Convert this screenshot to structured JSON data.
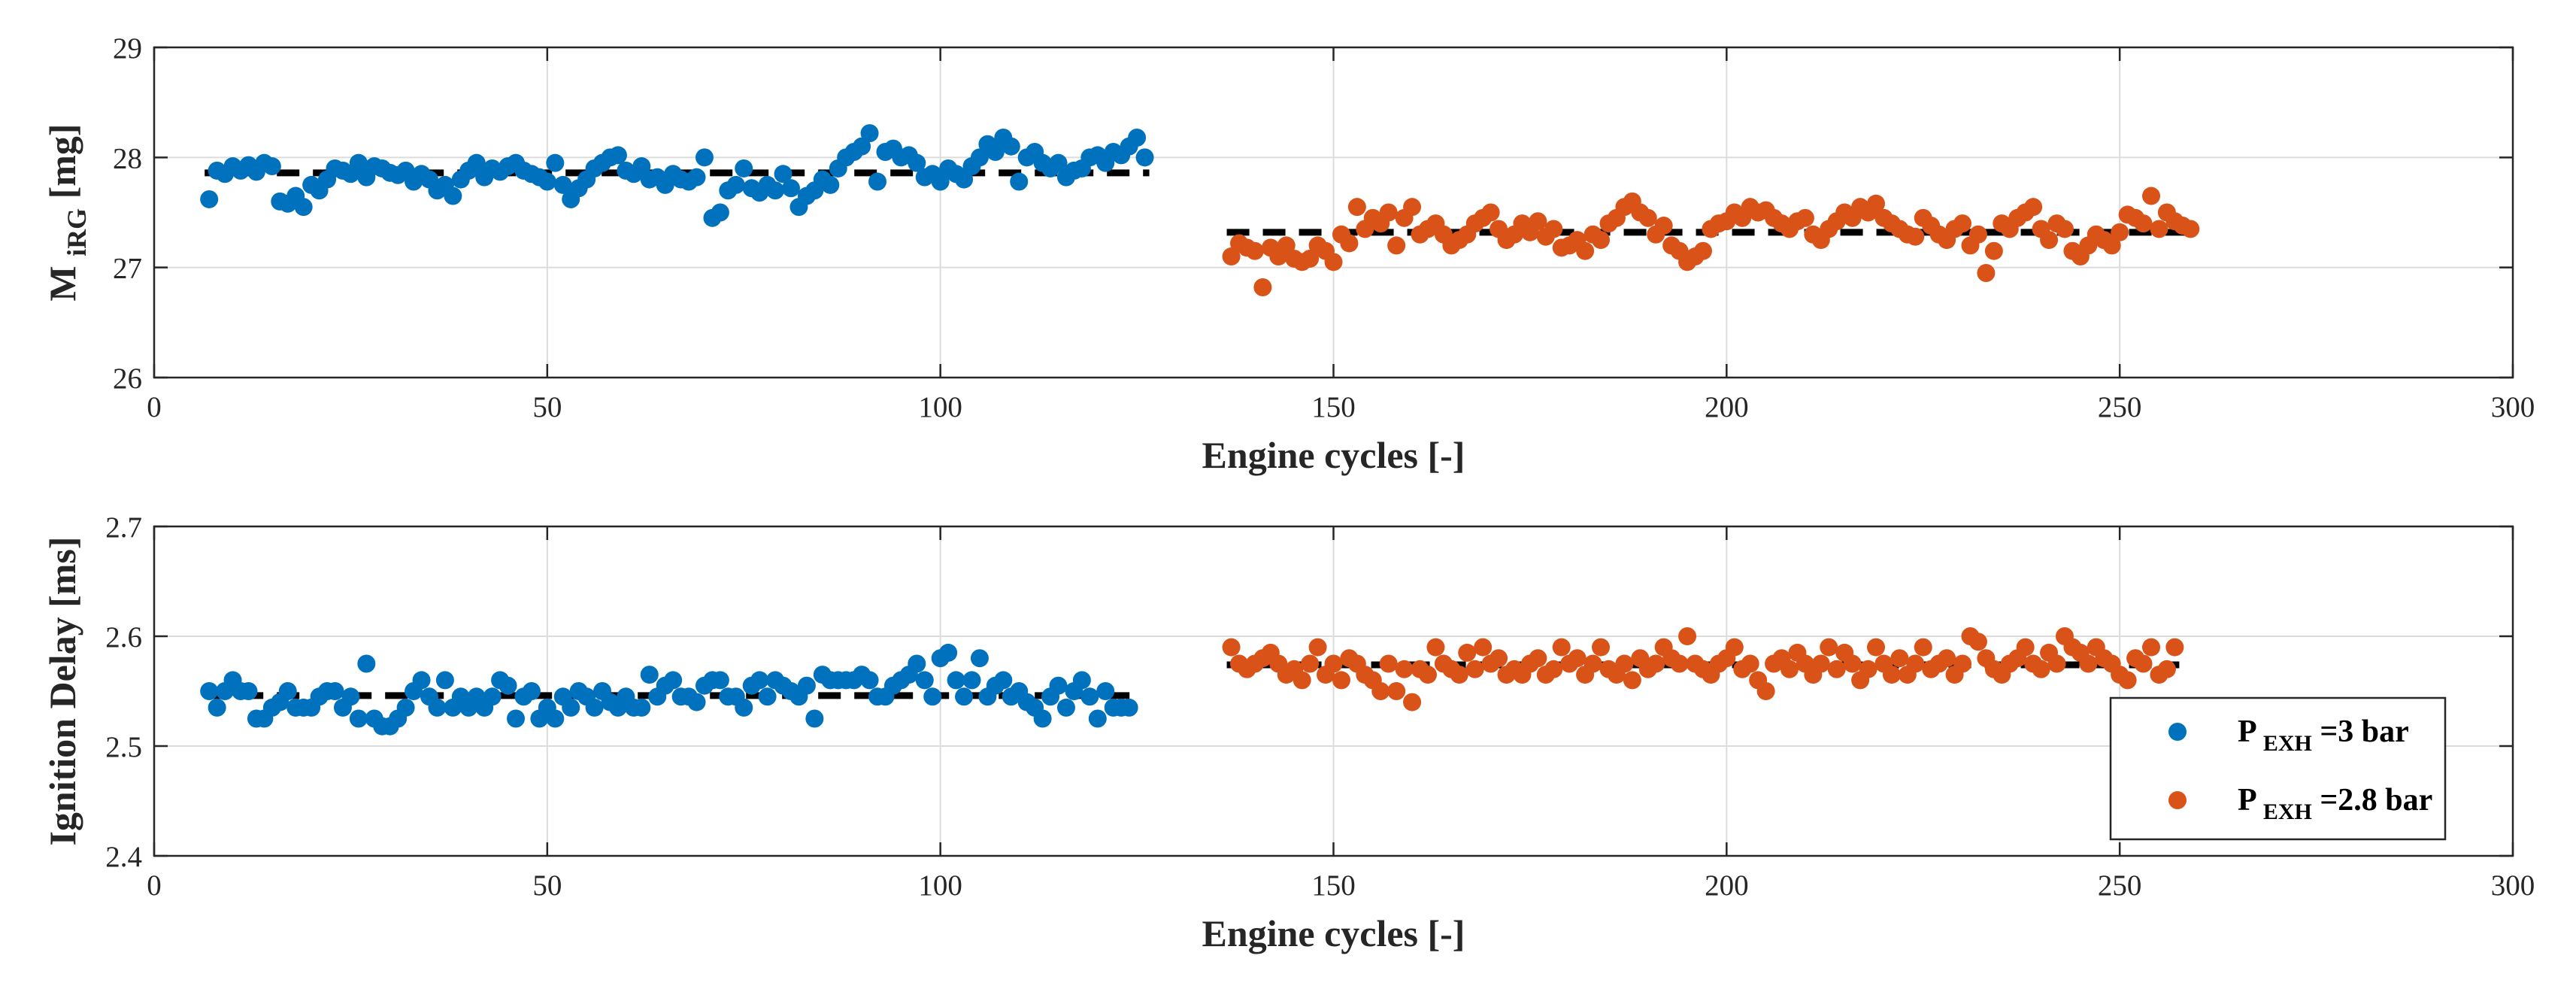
{
  "chart_data": [
    {
      "type": "scatter",
      "xlabel": "Engine cycles [-]",
      "ylabel": {
        "main": "M",
        "sub": "iRG",
        "rest": " [mg]"
      },
      "xlim": [
        0,
        300
      ],
      "ylim": [
        26,
        29
      ],
      "xticks": [
        0,
        50,
        100,
        150,
        200,
        250,
        300
      ],
      "yticks": [
        26,
        27,
        28,
        29
      ],
      "grid": true,
      "series": [
        {
          "name": "P_EXH=3 bar",
          "color": "#0072BD",
          "x_start": 7,
          "values": [
            27.62,
            27.88,
            27.85,
            27.92,
            27.88,
            27.93,
            27.87,
            27.95,
            27.92,
            27.6,
            27.58,
            27.65,
            27.55,
            27.75,
            27.7,
            27.8,
            27.9,
            27.88,
            27.85,
            27.95,
            27.82,
            27.92,
            27.9,
            27.86,
            27.84,
            27.88,
            27.78,
            27.85,
            27.8,
            27.7,
            27.75,
            27.65,
            27.8,
            27.88,
            27.95,
            27.82,
            27.9,
            27.87,
            27.92,
            27.95,
            27.88,
            27.85,
            27.82,
            27.78,
            27.95,
            27.75,
            27.62,
            27.72,
            27.8,
            27.9,
            27.95,
            28.0,
            28.02,
            27.88,
            27.85,
            27.92,
            27.8,
            27.82,
            27.75,
            27.85,
            27.8,
            27.78,
            27.82,
            28.0,
            27.45,
            27.5,
            27.7,
            27.75,
            27.9,
            27.72,
            27.68,
            27.75,
            27.7,
            27.85,
            27.72,
            27.55,
            27.65,
            27.7,
            27.8,
            27.75,
            27.9,
            28.0,
            28.05,
            28.1,
            28.22,
            27.78,
            28.05,
            28.08,
            28.0,
            28.02,
            27.95,
            27.82,
            27.85,
            27.78,
            27.9,
            27.85,
            27.8,
            27.92,
            28.0,
            28.12,
            28.05,
            28.18,
            28.1,
            27.78,
            28.0,
            28.05,
            27.95,
            27.9,
            27.95,
            27.82,
            27.88,
            27.9,
            28.0,
            28.02,
            27.95,
            28.05,
            28.02,
            28.1,
            28.18,
            28.0
          ],
          "mean": 27.86
        },
        {
          "name": "P_EXH=2.8 bar",
          "color": "#D95319",
          "x_start": 137,
          "values": [
            27.1,
            27.22,
            27.18,
            27.15,
            26.82,
            27.18,
            27.1,
            27.2,
            27.08,
            27.05,
            27.08,
            27.2,
            27.15,
            27.05,
            27.3,
            27.22,
            27.55,
            27.35,
            27.45,
            27.4,
            27.5,
            27.2,
            27.45,
            27.55,
            27.3,
            27.35,
            27.4,
            27.3,
            27.2,
            27.25,
            27.3,
            27.4,
            27.45,
            27.5,
            27.35,
            27.25,
            27.3,
            27.4,
            27.32,
            27.42,
            27.28,
            27.35,
            27.18,
            27.2,
            27.25,
            27.15,
            27.3,
            27.25,
            27.4,
            27.45,
            27.55,
            27.6,
            27.5,
            27.45,
            27.3,
            27.38,
            27.2,
            27.15,
            27.05,
            27.1,
            27.15,
            27.35,
            27.4,
            27.42,
            27.5,
            27.45,
            27.55,
            27.5,
            27.52,
            27.45,
            27.4,
            27.35,
            27.42,
            27.45,
            27.3,
            27.25,
            27.35,
            27.42,
            27.5,
            27.45,
            27.55,
            27.5,
            27.58,
            27.45,
            27.4,
            27.35,
            27.3,
            27.28,
            27.45,
            27.38,
            27.3,
            27.25,
            27.35,
            27.4,
            27.2,
            27.3,
            26.95,
            27.15,
            27.4,
            27.35,
            27.45,
            27.5,
            27.55,
            27.35,
            27.25,
            27.4,
            27.35,
            27.15,
            27.1,
            27.2,
            27.3,
            27.25,
            27.2,
            27.32,
            27.48,
            27.45,
            27.4,
            27.65,
            27.35,
            27.5,
            27.42,
            27.38,
            27.35
          ],
          "mean": 27.32
        }
      ]
    },
    {
      "type": "scatter",
      "xlabel": "Engine cycles [-]",
      "ylabel": {
        "main": "Ignition Delay [ms]",
        "sub": "",
        "rest": ""
      },
      "xlim": [
        0,
        300
      ],
      "ylim": [
        2.4,
        2.7
      ],
      "xticks": [
        0,
        50,
        100,
        150,
        200,
        250,
        300
      ],
      "yticks": [
        2.4,
        2.5,
        2.6,
        2.7
      ],
      "ytick_labels": [
        "2.4",
        "2.5",
        "2.6",
        "2.7"
      ],
      "grid": true,
      "series": [
        {
          "name": "P_EXH=3 bar",
          "color": "#0072BD",
          "x_start": 7,
          "values": [
            2.55,
            2.535,
            2.55,
            2.56,
            2.55,
            2.55,
            2.525,
            2.525,
            2.535,
            2.54,
            2.55,
            2.535,
            2.535,
            2.535,
            2.545,
            2.55,
            2.55,
            2.535,
            2.545,
            2.525,
            2.575,
            2.525,
            2.518,
            2.518,
            2.525,
            2.535,
            2.55,
            2.56,
            2.545,
            2.535,
            2.56,
            2.535,
            2.545,
            2.535,
            2.545,
            2.535,
            2.545,
            2.56,
            2.555,
            2.525,
            2.545,
            2.55,
            2.525,
            2.535,
            2.525,
            2.545,
            2.535,
            2.55,
            2.545,
            2.535,
            2.55,
            2.54,
            2.535,
            2.545,
            2.535,
            2.535,
            2.565,
            2.545,
            2.555,
            2.56,
            2.545,
            2.545,
            2.54,
            2.555,
            2.56,
            2.56,
            2.545,
            2.545,
            2.535,
            2.555,
            2.56,
            2.545,
            2.56,
            2.555,
            2.55,
            2.545,
            2.555,
            2.525,
            2.565,
            2.56,
            2.56,
            2.56,
            2.56,
            2.565,
            2.56,
            2.545,
            2.545,
            2.555,
            2.56,
            2.565,
            2.575,
            2.56,
            2.545,
            2.58,
            2.585,
            2.56,
            2.545,
            2.56,
            2.58,
            2.545,
            2.555,
            2.56,
            2.545,
            2.55,
            2.54,
            2.535,
            2.525,
            2.545,
            2.555,
            2.535,
            2.55,
            2.56,
            2.545,
            2.525,
            2.55,
            2.535,
            2.535,
            2.535
          ],
          "mean": 2.546
        },
        {
          "name": "P_EXH=2.8 bar",
          "color": "#D95319",
          "x_start": 137,
          "values": [
            2.59,
            2.575,
            2.57,
            2.575,
            2.58,
            2.585,
            2.575,
            2.565,
            2.57,
            2.56,
            2.575,
            2.59,
            2.565,
            2.575,
            2.56,
            2.58,
            2.575,
            2.565,
            2.56,
            2.55,
            2.575,
            2.55,
            2.57,
            2.54,
            2.57,
            2.565,
            2.59,
            2.575,
            2.57,
            2.565,
            2.585,
            2.57,
            2.59,
            2.575,
            2.58,
            2.565,
            2.57,
            2.565,
            2.575,
            2.58,
            2.565,
            2.57,
            2.59,
            2.575,
            2.58,
            2.565,
            2.575,
            2.59,
            2.57,
            2.565,
            2.575,
            2.56,
            2.58,
            2.57,
            2.575,
            2.59,
            2.58,
            2.575,
            2.6,
            2.575,
            2.57,
            2.565,
            2.575,
            2.58,
            2.59,
            2.57,
            2.575,
            2.56,
            2.55,
            2.575,
            2.58,
            2.57,
            2.585,
            2.575,
            2.565,
            2.575,
            2.59,
            2.57,
            2.585,
            2.575,
            2.56,
            2.57,
            2.59,
            2.575,
            2.565,
            2.58,
            2.565,
            2.575,
            2.59,
            2.57,
            2.575,
            2.58,
            2.565,
            2.575,
            2.6,
            2.595,
            2.58,
            2.57,
            2.565,
            2.575,
            2.58,
            2.59,
            2.575,
            2.57,
            2.585,
            2.575,
            2.6,
            2.59,
            2.585,
            2.575,
            2.59,
            2.58,
            2.575,
            2.565,
            2.56,
            2.58,
            2.575,
            2.59,
            2.565,
            2.57,
            2.59
          ],
          "mean": 2.574
        }
      ]
    }
  ],
  "legend": {
    "position": "lower-right of bottom plot",
    "items": [
      {
        "main": "P",
        "sub": "EXH",
        "rest": "=3 bar",
        "color": "#0072BD"
      },
      {
        "main": "P",
        "sub": "EXH",
        "rest": "=2.8 bar",
        "color": "#D95319"
      }
    ]
  }
}
